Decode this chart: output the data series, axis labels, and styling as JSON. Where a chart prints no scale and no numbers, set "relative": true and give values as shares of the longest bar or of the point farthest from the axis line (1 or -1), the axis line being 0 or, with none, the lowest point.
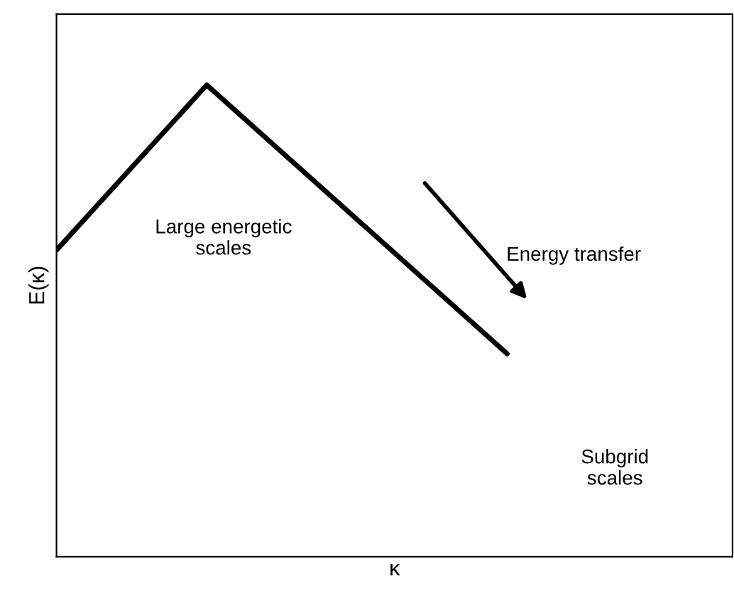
{
  "chart_data": {
    "type": "line",
    "relative": true,
    "xlabel": "κ",
    "ylabel": "E(κ)",
    "categories": [
      null,
      null,
      null,
      null,
      null
    ],
    "series": [
      {
        "color": "#000000",
        "values": [
          0.65,
          1,
          null,
          0.43,
          null
        ]
      }
    ],
    "marker": "none",
    "line_style": "solid",
    "grid": false,
    "legend": false,
    "annotations": [
      "Large energetic\nscales",
      "Energy transfer",
      "Subgrid\nscales"
    ]
  }
}
